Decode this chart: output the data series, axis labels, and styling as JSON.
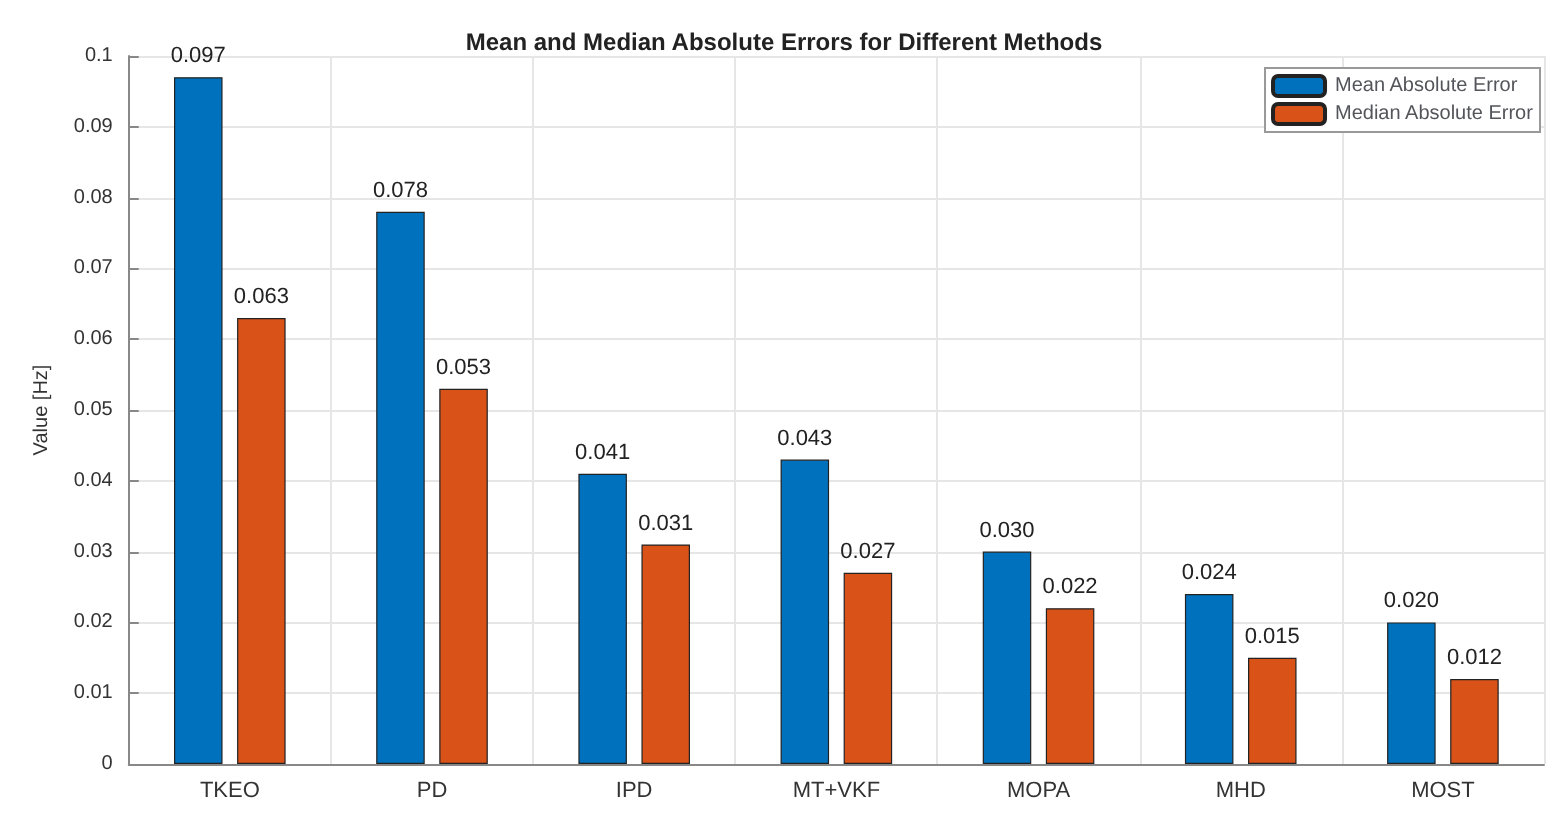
{
  "chart_data": {
    "type": "bar",
    "title": "Mean and Median Absolute Errors for Different Methods",
    "ylabel": "Value [Hz]",
    "categories": [
      "TKEO",
      "PD",
      "IPD",
      "MT+VKF",
      "MOPA",
      "MHD",
      "MOST"
    ],
    "series": [
      {
        "name": "Mean Absolute Error",
        "color": "#0072bd",
        "values": [
          0.097,
          0.078,
          0.041,
          0.043,
          0.03,
          0.024,
          0.02
        ],
        "value_labels": [
          "0.097",
          "0.078",
          "0.041",
          "0.043",
          "0.030",
          "0.024",
          "0.020"
        ]
      },
      {
        "name": "Median Absolute Error",
        "color": "#d95319",
        "values": [
          0.063,
          0.053,
          0.031,
          0.027,
          0.022,
          0.015,
          0.012
        ],
        "value_labels": [
          "0.063",
          "0.053",
          "0.031",
          "0.027",
          "0.022",
          "0.015",
          "0.012"
        ]
      }
    ],
    "ylim": [
      0,
      0.1
    ],
    "yticks": [
      0,
      0.01,
      0.02,
      0.03,
      0.04,
      0.05,
      0.06,
      0.07,
      0.08,
      0.09,
      0.1
    ],
    "grid": true,
    "legend": "top right"
  }
}
